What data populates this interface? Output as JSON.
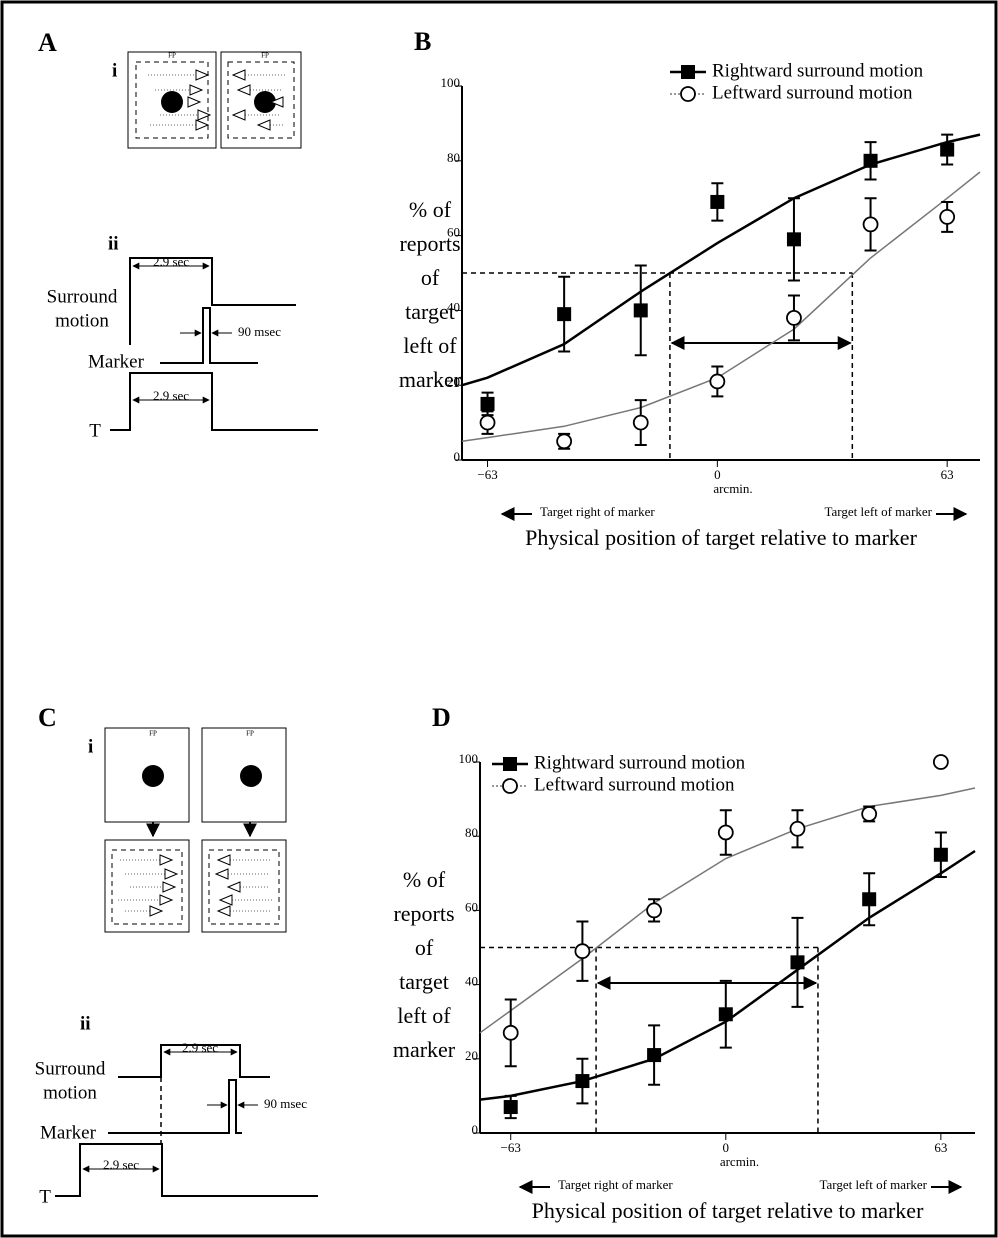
{
  "panels": {
    "a": {
      "letter": "A",
      "sub_i": "i",
      "sub_ii": "ii",
      "fp": "FP",
      "duration_top": "2.9 sec",
      "surround_label": [
        "Surround",
        "motion"
      ],
      "pulse_label": "90 msec",
      "marker_label": "Marker",
      "duration_bottom": "2.9 sec",
      "t_label": "T"
    },
    "c": {
      "letter": "C",
      "sub_i": "i",
      "sub_ii": "ii",
      "fp": "FP",
      "duration_top": "2.9 sec",
      "surround_label": [
        "Surround",
        "motion"
      ],
      "pulse_label": "90 msec",
      "marker_label": "Marker",
      "duration_bottom": "2.9 sec",
      "t_label": "T"
    }
  },
  "chart_data": [
    {
      "type": "scatter",
      "panel_label": "B",
      "x_unit_label": "arcmin.",
      "direction_labels": [
        "Target right of marker",
        "Target left of marker"
      ],
      "xlabel": "Physical position of target relative to marker",
      "ylabel_lines": [
        "% of",
        "reports",
        "of",
        "target",
        "left of",
        "marker"
      ],
      "x": [
        -63,
        -42,
        -21,
        0,
        21,
        42,
        63
      ],
      "xlim": [
        -70,
        72
      ],
      "ylim": [
        0,
        100
      ],
      "xticks": [
        {
          "value": -63,
          "label": "−63"
        },
        0,
        63
      ],
      "yticks": [
        0,
        20,
        40,
        60,
        80,
        100
      ],
      "reference_y": 50,
      "thresholds": [
        -13,
        37
      ],
      "legend": "upper right",
      "series": [
        {
          "name": "Rightward surround motion",
          "marker": "square",
          "color": "#000000",
          "values": [
            15,
            39,
            40,
            69,
            59,
            80,
            83
          ],
          "errors": [
            3,
            10,
            12,
            5,
            11,
            5,
            4
          ],
          "fit": {
            "color": "#000000",
            "x": [
              -70,
              -63,
              -42,
              -21,
              0,
              21,
              42,
              63,
              72
            ],
            "values": [
              20,
              22,
              31,
              45,
              58,
              70,
              79,
              85,
              87
            ]
          }
        },
        {
          "name": "Leftward surround motion",
          "marker": "circle",
          "color": "#000000",
          "values": [
            10,
            5,
            10,
            21,
            38,
            63,
            65
          ],
          "errors": [
            3,
            2,
            6,
            4,
            6,
            7,
            4
          ],
          "fit": {
            "color": "#777777",
            "x": [
              -70,
              -63,
              -42,
              -21,
              0,
              21,
              42,
              63,
              72
            ],
            "values": [
              5,
              6,
              9,
              14,
              22,
              35,
              54,
              70,
              77
            ]
          }
        }
      ]
    },
    {
      "type": "scatter",
      "panel_label": "D",
      "x_unit_label": "arcmin.",
      "direction_labels": [
        "Target right of marker",
        "Target left of marker"
      ],
      "xlabel": "Physical position of target relative to marker",
      "ylabel_lines": [
        "% of",
        "reports",
        "of",
        "target",
        "left of",
        "marker"
      ],
      "x": [
        -63,
        -42,
        -21,
        0,
        21,
        42,
        63
      ],
      "xlim": [
        -72,
        73
      ],
      "ylim": [
        0,
        100
      ],
      "xticks": [
        {
          "value": -63,
          "label": "−63"
        },
        0,
        63
      ],
      "yticks": [
        0,
        20,
        40,
        60,
        80,
        100
      ],
      "reference_y": 50,
      "thresholds": [
        -38,
        27
      ],
      "legend": "upper left",
      "series": [
        {
          "name": "Rightward surround motion",
          "marker": "square",
          "color": "#000000",
          "values": [
            7,
            14,
            21,
            32,
            46,
            63,
            75
          ],
          "errors": [
            3,
            6,
            8,
            9,
            12,
            7,
            6
          ],
          "fit": {
            "color": "#000000",
            "x": [
              -72,
              -63,
              -42,
              -21,
              0,
              21,
              42,
              63,
              73
            ],
            "values": [
              9,
              10,
              14,
              20,
              30,
              44,
              58,
              70,
              76
            ]
          }
        },
        {
          "name": "Leftward surround motion",
          "marker": "circle",
          "color": "#000000",
          "values": [
            27,
            49,
            60,
            81,
            82,
            86,
            100
          ],
          "errors": [
            9,
            8,
            3,
            6,
            5,
            2,
            null
          ],
          "fit": {
            "color": "#777777",
            "x": [
              -72,
              -63,
              -42,
              -21,
              0,
              21,
              42,
              63,
              73
            ],
            "values": [
              27,
              33,
              47,
              62,
              74,
              82,
              88,
              91,
              93
            ]
          }
        }
      ]
    }
  ]
}
